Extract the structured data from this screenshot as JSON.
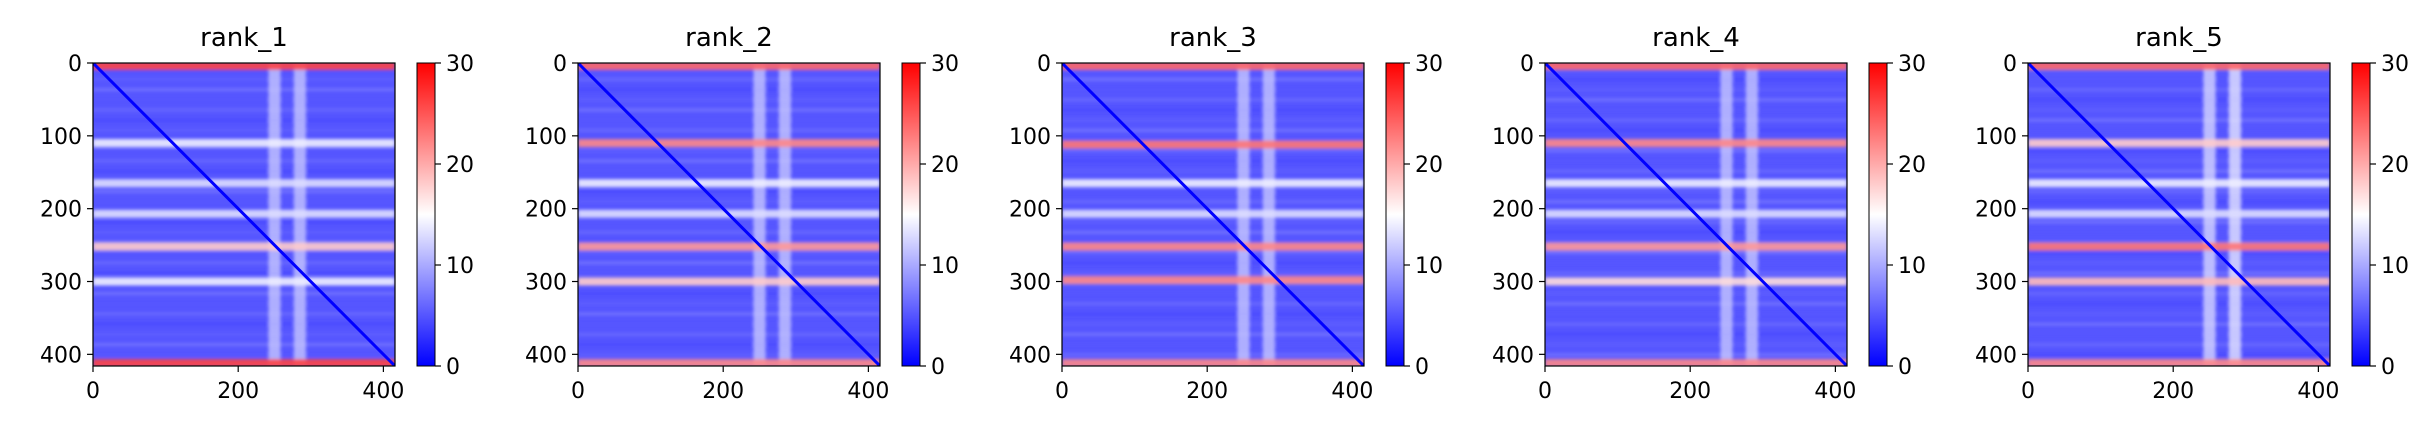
{
  "chart_data": [
    {
      "type": "heatmap",
      "title": "rank_1",
      "x_ticks": [
        "0",
        "200",
        "400"
      ],
      "y_ticks": [
        "0",
        "100",
        "200",
        "300",
        "400"
      ],
      "xlim": [
        0,
        416
      ],
      "ylim": [
        416,
        0
      ],
      "colorbar": {
        "min": 0,
        "max": 30,
        "ticks": [
          "0",
          "10",
          "20",
          "30"
        ],
        "colormap": "bwr"
      },
      "stripes_y": [
        {
          "y": 4,
          "value": 26
        },
        {
          "y": 110,
          "value": 14
        },
        {
          "y": 165,
          "value": 13
        },
        {
          "y": 207,
          "value": 13
        },
        {
          "y": 252,
          "value": 18
        },
        {
          "y": 300,
          "value": 14
        },
        {
          "y": 412,
          "value": 26
        }
      ],
      "stripes_x": [
        {
          "x": 250,
          "value": 12
        },
        {
          "x": 285,
          "value": 12
        }
      ]
    },
    {
      "type": "heatmap",
      "title": "rank_2",
      "x_ticks": [
        "0",
        "200",
        "400"
      ],
      "y_ticks": [
        "0",
        "100",
        "200",
        "300",
        "400"
      ],
      "xlim": [
        0,
        416
      ],
      "ylim": [
        416,
        0
      ],
      "colorbar": {
        "min": 0,
        "max": 30,
        "ticks": [
          "0",
          "10",
          "20",
          "30"
        ],
        "colormap": "bwr"
      },
      "stripes_y": [
        {
          "y": 4,
          "value": 24
        },
        {
          "y": 110,
          "value": 22
        },
        {
          "y": 165,
          "value": 14
        },
        {
          "y": 207,
          "value": 13
        },
        {
          "y": 252,
          "value": 21
        },
        {
          "y": 300,
          "value": 18
        },
        {
          "y": 412,
          "value": 22
        }
      ],
      "stripes_x": [
        {
          "x": 250,
          "value": 12
        },
        {
          "x": 285,
          "value": 12
        }
      ]
    },
    {
      "type": "heatmap",
      "title": "rank_3",
      "x_ticks": [
        "0",
        "200",
        "400"
      ],
      "y_ticks": [
        "0",
        "100",
        "200",
        "300",
        "400"
      ],
      "xlim": [
        0,
        416
      ],
      "ylim": [
        416,
        0
      ],
      "colorbar": {
        "min": 0,
        "max": 30,
        "ticks": [
          "0",
          "10",
          "20",
          "30"
        ],
        "colormap": "bwr"
      },
      "stripes_y": [
        {
          "y": 4,
          "value": 24
        },
        {
          "y": 112,
          "value": 23
        },
        {
          "y": 165,
          "value": 14
        },
        {
          "y": 207,
          "value": 13
        },
        {
          "y": 252,
          "value": 22
        },
        {
          "y": 298,
          "value": 22
        },
        {
          "y": 412,
          "value": 22
        }
      ],
      "stripes_x": [
        {
          "x": 250,
          "value": 12
        },
        {
          "x": 285,
          "value": 12
        }
      ]
    },
    {
      "type": "heatmap",
      "title": "rank_4",
      "x_ticks": [
        "0",
        "200",
        "400"
      ],
      "y_ticks": [
        "0",
        "100",
        "200",
        "300",
        "400"
      ],
      "xlim": [
        0,
        416
      ],
      "ylim": [
        416,
        0
      ],
      "colorbar": {
        "min": 0,
        "max": 30,
        "ticks": [
          "0",
          "10",
          "20",
          "30"
        ],
        "colormap": "bwr"
      },
      "stripes_y": [
        {
          "y": 4,
          "value": 24
        },
        {
          "y": 110,
          "value": 22
        },
        {
          "y": 165,
          "value": 14
        },
        {
          "y": 207,
          "value": 13
        },
        {
          "y": 252,
          "value": 21
        },
        {
          "y": 300,
          "value": 17
        },
        {
          "y": 412,
          "value": 22
        }
      ],
      "stripes_x": [
        {
          "x": 250,
          "value": 12
        },
        {
          "x": 285,
          "value": 12
        }
      ]
    },
    {
      "type": "heatmap",
      "title": "rank_5",
      "x_ticks": [
        "0",
        "200",
        "400"
      ],
      "y_ticks": [
        "0",
        "100",
        "200",
        "300",
        "400"
      ],
      "xlim": [
        0,
        416
      ],
      "ylim": [
        416,
        0
      ],
      "colorbar": {
        "min": 0,
        "max": 30,
        "ticks": [
          "0",
          "10",
          "20",
          "30"
        ],
        "colormap": "bwr"
      },
      "stripes_y": [
        {
          "y": 4,
          "value": 24
        },
        {
          "y": 110,
          "value": 18
        },
        {
          "y": 165,
          "value": 14
        },
        {
          "y": 207,
          "value": 13
        },
        {
          "y": 252,
          "value": 23
        },
        {
          "y": 300,
          "value": 19
        },
        {
          "y": 412,
          "value": 22
        }
      ],
      "stripes_x": [
        {
          "x": 250,
          "value": 13
        },
        {
          "x": 285,
          "value": 14
        }
      ]
    }
  ]
}
